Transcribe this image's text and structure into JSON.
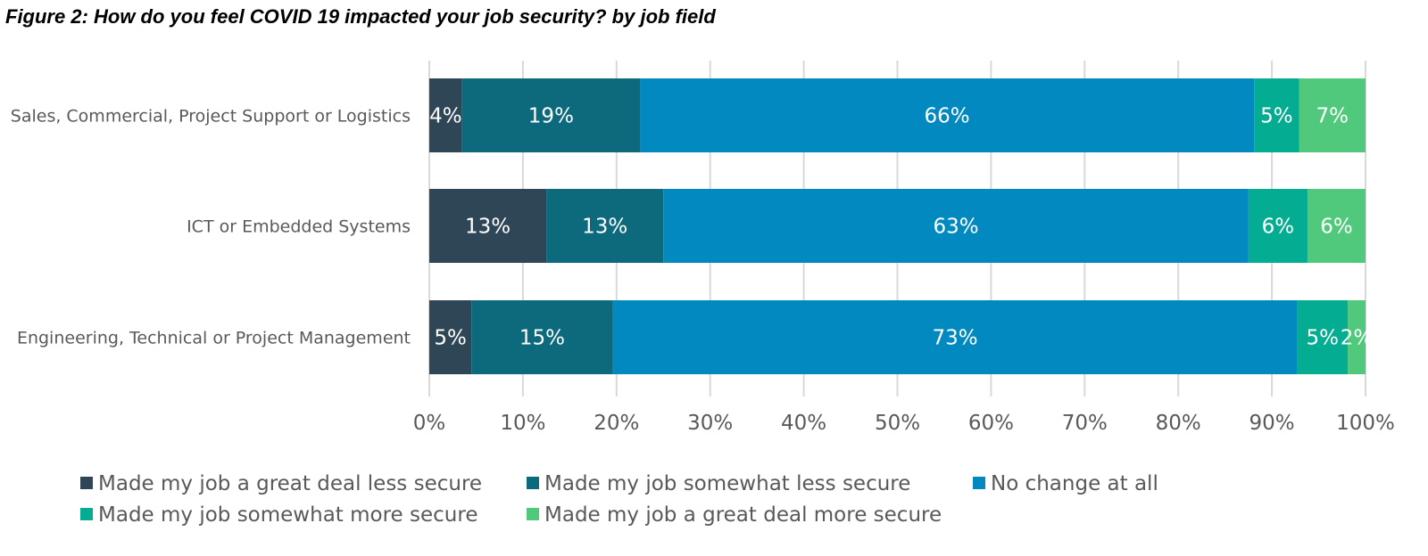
{
  "title": "Figure 2: How do you feel COVID 19 impacted your job security? by job field",
  "chart_data": {
    "type": "bar",
    "orientation": "horizontal",
    "stacked": "percent",
    "categories": [
      "Sales, Commercial, Project Support or Logistics",
      "ICT or Embedded Systems",
      "Engineering, Technical or Project Management"
    ],
    "series": [
      {
        "name": "Made my job a great deal less secure",
        "color": "#2F4657",
        "values": [
          3.5,
          12.5,
          4.5
        ],
        "labels": [
          "4%",
          "13%",
          "5%"
        ]
      },
      {
        "name": "Made my job somewhat less secure",
        "color": "#0D6A7C",
        "values": [
          19,
          12.5,
          15.1
        ],
        "labels": [
          "19%",
          "13%",
          "15%"
        ]
      },
      {
        "name": "No change at all",
        "color": "#028AC0",
        "values": [
          65.6,
          62.5,
          73.1
        ],
        "labels": [
          "66%",
          "63%",
          "73%"
        ]
      },
      {
        "name": "Made my job somewhat more secure",
        "color": "#04AD91",
        "values": [
          4.8,
          6.3,
          5.4
        ],
        "labels": [
          "5%",
          "6%",
          "5%"
        ]
      },
      {
        "name": "Made my job a great deal more secure",
        "color": "#51C97D",
        "values": [
          7.1,
          6.2,
          1.9
        ],
        "labels": [
          "7%",
          "6%",
          "2%"
        ]
      }
    ],
    "xlim": [
      0,
      100
    ],
    "xticks": [
      "0%",
      "10%",
      "20%",
      "30%",
      "40%",
      "50%",
      "60%",
      "70%",
      "80%",
      "90%",
      "100%"
    ],
    "grid": true,
    "legend_position": "bottom"
  }
}
